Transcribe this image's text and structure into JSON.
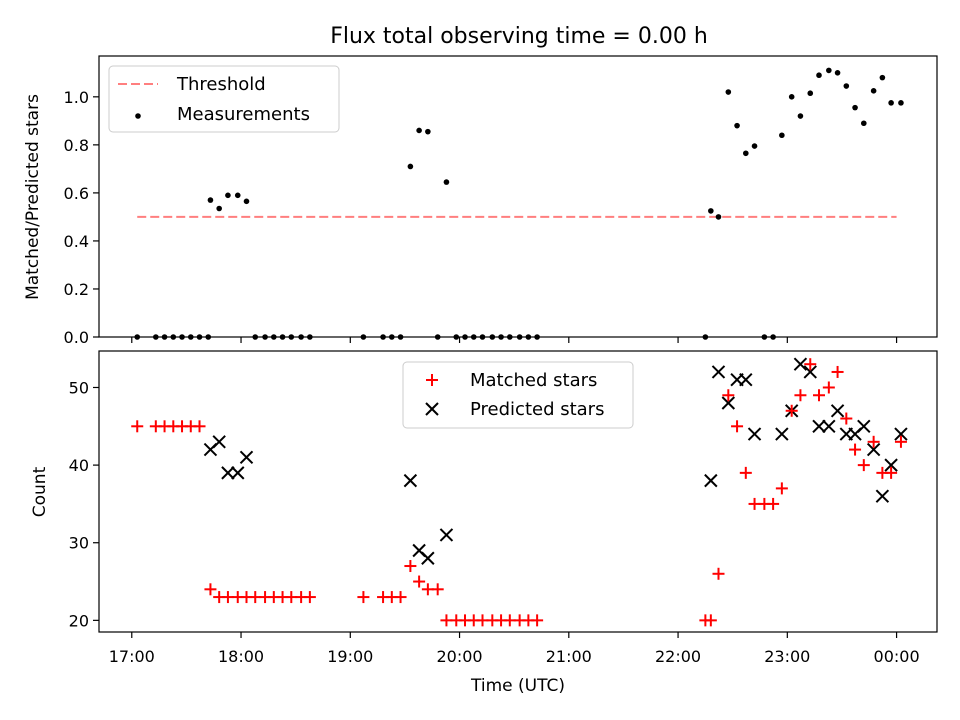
{
  "chart_data": {
    "type": "scatter",
    "title": "Flux total observing time = 0.00 h",
    "xlabel": "Time (UTC)",
    "x_tick_labels": [
      "17:00",
      "18:00",
      "19:00",
      "20:00",
      "21:00",
      "22:00",
      "23:00",
      "00:00"
    ],
    "x_tick_values_hours": [
      17,
      18,
      19,
      20,
      21,
      22,
      23,
      24
    ],
    "xlim_hours": [
      16.7,
      24.37
    ],
    "panels": [
      {
        "ylabel": "Matched/Predicted stars",
        "ylim": [
          0,
          1.17
        ],
        "y_tick_labels": [
          "0.0",
          "0.2",
          "0.4",
          "0.6",
          "0.8",
          "1.0"
        ],
        "y_tick_values": [
          0,
          0.2,
          0.4,
          0.6,
          0.8,
          1.0
        ],
        "legend_position": "upper-left",
        "threshold": {
          "name": "Threshold",
          "value": 0.5,
          "x_range": [
            17.05,
            24.0
          ],
          "color": "#ff7f7f"
        },
        "series": [
          {
            "name": "Measurements",
            "marker": "dot",
            "color": "#000000",
            "x": [
              17.05,
              17.22,
              17.3,
              17.38,
              17.46,
              17.54,
              17.62,
              17.7,
              17.72,
              17.8,
              17.88,
              17.97,
              18.05,
              18.13,
              18.22,
              18.3,
              18.38,
              18.46,
              18.55,
              18.63,
              19.12,
              19.3,
              19.38,
              19.46,
              19.55,
              19.63,
              19.71,
              19.8,
              19.88,
              19.97,
              20.05,
              20.13,
              20.21,
              20.3,
              20.38,
              20.46,
              20.55,
              20.63,
              20.71,
              22.25,
              22.3,
              22.37,
              22.46,
              22.54,
              22.62,
              22.7,
              22.79,
              22.87,
              22.95,
              23.04,
              23.12,
              23.21,
              23.29,
              23.38,
              23.46,
              23.54,
              23.62,
              23.7,
              23.79,
              23.87,
              23.95,
              24.04
            ],
            "y": [
              0,
              0,
              0,
              0,
              0,
              0,
              0,
              0,
              0.57,
              0.535,
              0.59,
              0.59,
              0.565,
              0,
              0,
              0,
              0,
              0,
              0,
              0,
              0,
              0,
              0,
              0,
              0.71,
              0.86,
              0.855,
              0,
              0.645,
              0,
              0,
              0,
              0,
              0,
              0,
              0,
              0,
              0,
              0,
              0,
              0.525,
              0.5,
              1.02,
              0.88,
              0.765,
              0.795,
              0,
              0,
              0.84,
              1.0,
              0.92,
              1.015,
              1.09,
              1.11,
              1.1,
              1.045,
              0.955,
              0.89,
              1.025,
              1.08,
              0.975,
              0.975
            ]
          }
        ]
      },
      {
        "ylabel": "Count",
        "ylim": [
          18.5,
          54.7
        ],
        "y_tick_labels": [
          "20",
          "30",
          "40",
          "50"
        ],
        "y_tick_values": [
          20,
          30,
          40,
          50
        ],
        "legend_position": "upper-center",
        "series": [
          {
            "name": "Matched stars",
            "marker": "plus",
            "color": "#ff0000",
            "x": [
              17.05,
              17.22,
              17.3,
              17.38,
              17.46,
              17.54,
              17.62,
              17.72,
              17.8,
              17.88,
              17.97,
              18.05,
              18.13,
              18.22,
              18.3,
              18.38,
              18.46,
              18.55,
              18.63,
              19.12,
              19.3,
              19.38,
              19.46,
              19.55,
              19.63,
              19.71,
              19.8,
              19.88,
              19.97,
              20.05,
              20.13,
              20.21,
              20.3,
              20.38,
              20.46,
              20.55,
              20.63,
              20.71,
              22.25,
              22.3,
              22.37,
              22.46,
              22.54,
              22.62,
              22.7,
              22.79,
              22.87,
              22.95,
              23.04,
              23.12,
              23.21,
              23.29,
              23.38,
              23.46,
              23.54,
              23.62,
              23.7,
              23.79,
              23.87,
              23.95,
              24.04
            ],
            "y": [
              45,
              45,
              45,
              45,
              45,
              45,
              45,
              24,
              23,
              23,
              23,
              23,
              23,
              23,
              23,
              23,
              23,
              23,
              23,
              23,
              23,
              23,
              23,
              27,
              25,
              24,
              24,
              20,
              20,
              20,
              20,
              20,
              20,
              20,
              20,
              20,
              20,
              20,
              20,
              20,
              26,
              49,
              45,
              39,
              35,
              35,
              35,
              37,
              47,
              49,
              53,
              49,
              50,
              52,
              46,
              42,
              40,
              43,
              39,
              39,
              43
            ]
          },
          {
            "name": "Predicted stars",
            "marker": "x",
            "color": "#000000",
            "x": [
              17.72,
              17.8,
              17.88,
              17.97,
              18.05,
              19.55,
              19.63,
              19.71,
              19.88,
              22.3,
              22.37,
              22.46,
              22.54,
              22.62,
              22.7,
              22.95,
              23.04,
              23.12,
              23.21,
              23.29,
              23.38,
              23.46,
              23.54,
              23.62,
              23.7,
              23.79,
              23.87,
              23.95,
              24.04
            ],
            "y": [
              42,
              43,
              39,
              39,
              41,
              38,
              29,
              28,
              31,
              38,
              52,
              48,
              51,
              51,
              44,
              44,
              47,
              53,
              52,
              45,
              45,
              47,
              44,
              44,
              45,
              42,
              36,
              40,
              44
            ]
          }
        ]
      }
    ]
  }
}
